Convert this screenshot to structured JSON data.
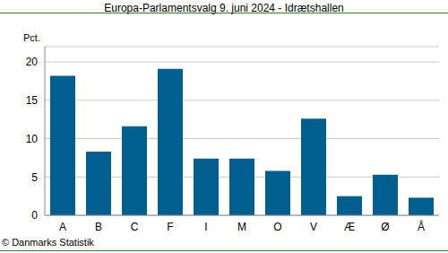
{
  "chart_data": {
    "type": "bar",
    "title": "Europa-Parlamentsvalg 9. juni 2024 - Idrætshallen",
    "y_label": "Pct.",
    "source": "© Danmarks Statistik",
    "categories": [
      "A",
      "B",
      "C",
      "F",
      "I",
      "M",
      "O",
      "V",
      "Æ",
      "Ø",
      "Å"
    ],
    "values": [
      18.2,
      8.3,
      11.6,
      19.1,
      7.4,
      7.4,
      5.8,
      12.6,
      2.5,
      5.3,
      2.3
    ],
    "color": "#005f8f",
    "ylim": [
      0,
      22
    ],
    "yticks": [
      0,
      5,
      10,
      15,
      20
    ],
    "grid": true
  }
}
